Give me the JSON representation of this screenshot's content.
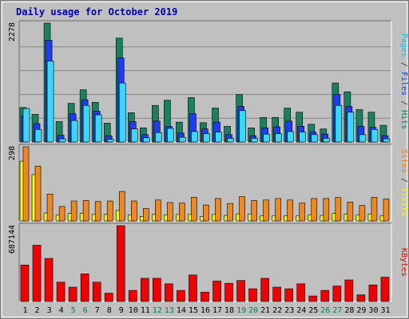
{
  "chart_data": {
    "type": "bar",
    "title": "Daily usage for October 2019",
    "categories": [
      "1",
      "2",
      "3",
      "4",
      "5",
      "6",
      "7",
      "8",
      "9",
      "10",
      "11",
      "12",
      "13",
      "14",
      "15",
      "16",
      "17",
      "18",
      "19",
      "20",
      "21",
      "22",
      "23",
      "24",
      "25",
      "26",
      "27",
      "28",
      "29",
      "30",
      "31"
    ],
    "weekend_days": [
      "5",
      "6",
      "12",
      "13",
      "19",
      "20",
      "26",
      "27"
    ],
    "panels": [
      {
        "name": "hits-files-pages",
        "max_label": "2278",
        "ylim": [
          0,
          2278
        ],
        "right_labels": [
          {
            "text": "Pages",
            "color": "#00c8ff"
          },
          {
            "text": " / ",
            "color": "#333333"
          },
          {
            "text": "Files",
            "color": "#0040ff"
          },
          {
            "text": " / ",
            "color": "#333333"
          },
          {
            "text": "Hits",
            "color": "#008060"
          }
        ],
        "series": [
          {
            "name": "Hits",
            "color": "#1a8060",
            "values": [
              660,
              530,
              2278,
              390,
              740,
              1000,
              760,
              360,
              1990,
              560,
              270,
              700,
              800,
              380,
              850,
              370,
              650,
              300,
              910,
              270,
              470,
              470,
              650,
              570,
              340,
              250,
              1130,
              960,
              620,
              570,
              320
            ]
          },
          {
            "name": "Files",
            "color": "#1e3cf0",
            "values": [
              500,
              350,
              1950,
              130,
              540,
              810,
              590,
              120,
              1610,
              390,
              140,
              400,
              300,
              170,
              540,
              250,
              380,
              140,
              680,
              120,
              270,
              290,
              400,
              300,
              190,
              150,
              910,
              680,
              300,
              280,
              120
            ]
          },
          {
            "name": "Pages",
            "color": "#3ad8f8",
            "values": [
              640,
              240,
              1550,
              60,
              410,
              700,
              520,
              50,
              1130,
              250,
              80,
              180,
              260,
              90,
              200,
              160,
              190,
              70,
              600,
              70,
              150,
              160,
              200,
              190,
              140,
              70,
              700,
              570,
              140,
              240,
              60
            ]
          }
        ]
      },
      {
        "name": "visits-sites",
        "max_label": "298",
        "ylim": [
          0,
          298
        ],
        "right_labels": [
          {
            "text": "Sites",
            "color": "#ff8000"
          },
          {
            "text": " / ",
            "color": "#333333"
          },
          {
            "text": "Visits",
            "color": "#f8f800"
          }
        ],
        "series": [
          {
            "name": "Visits",
            "color": "#f8f800",
            "values": [
              240,
              186,
              32,
              24,
              30,
              30,
              26,
              26,
              42,
              24,
              18,
              26,
              24,
              26,
              26,
              18,
              26,
              22,
              28,
              28,
              20,
              20,
              20,
              20,
              24,
              22,
              30,
              28,
              24,
              28,
              20
            ]
          },
          {
            "name": "Sites",
            "color": "#f08820",
            "values": [
              298,
              220,
              108,
              58,
              80,
              82,
              78,
              80,
              118,
              80,
              50,
              84,
              74,
              72,
              95,
              64,
              90,
              70,
              98,
              82,
              84,
              90,
              84,
              72,
              90,
              90,
              94,
              76,
              62,
              95,
              88
            ]
          }
        ]
      },
      {
        "name": "kbytes",
        "max_label": "687144",
        "ylim": [
          0,
          687144
        ],
        "right_labels": [
          {
            "text": "KBytes",
            "color": "#ff0000"
          }
        ],
        "series": [
          {
            "name": "KBytes",
            "color": "#f00000",
            "values": [
              330000,
              510000,
              390000,
              175000,
              130000,
              250000,
              175000,
              75000,
              687144,
              100000,
              210000,
              210000,
              160000,
              100000,
              240000,
              85000,
              185000,
              165000,
              190000,
              115000,
              210000,
              130000,
              115000,
              160000,
              50000,
              100000,
              140000,
              195000,
              60000,
              150000,
              220000
            ]
          }
        ]
      }
    ]
  }
}
